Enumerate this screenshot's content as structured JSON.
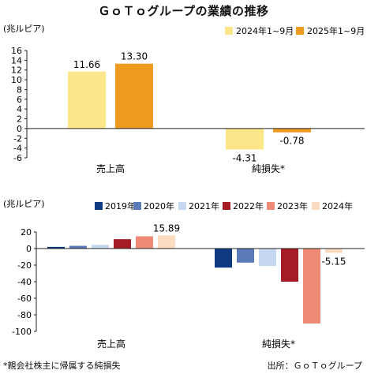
{
  "title": "ＧｏＴｏグループの業績の推移",
  "footnote": "*親会社株主に帰属する純損失",
  "source": "出所：ＧｏＴｏグループ",
  "chart_data": [
    {
      "type": "bar",
      "unit": "(兆ルピア)",
      "categories": [
        "売上高",
        "純損失*"
      ],
      "series": [
        {
          "name": "2024年1~9月",
          "color": "#fde68a",
          "values": [
            11.66,
            -4.31
          ]
        },
        {
          "name": "2025年1~9月",
          "color": "#ef9b20",
          "values": [
            13.3,
            -0.78
          ]
        }
      ],
      "data_labels": [
        [
          "11.66",
          "-4.31"
        ],
        [
          "13.30",
          "-0.78"
        ]
      ],
      "ylim": [
        -6,
        16
      ],
      "yticks": [
        16,
        14,
        12,
        10,
        8,
        6,
        4,
        2,
        0,
        -2,
        -4,
        -6
      ],
      "legend": "top-right"
    },
    {
      "type": "bar",
      "unit": "(兆ルピア)",
      "categories": [
        "売上高",
        "純損失*"
      ],
      "series": [
        {
          "name": "2019年",
          "color": "#0d3a80",
          "values": [
            2.0,
            -23
          ]
        },
        {
          "name": "2020年",
          "color": "#5a7bb8",
          "values": [
            3.3,
            -17
          ]
        },
        {
          "name": "2021年",
          "color": "#c5d8f0",
          "values": [
            4.5,
            -21
          ]
        },
        {
          "name": "2022年",
          "color": "#a51c24",
          "values": [
            11.3,
            -40
          ]
        },
        {
          "name": "2023年",
          "color": "#ef8a78",
          "values": [
            14.8,
            -90.5
          ]
        },
        {
          "name": "2024年",
          "color": "#fbdcc1",
          "values": [
            15.89,
            -5.15
          ]
        }
      ],
      "data_labels": [
        [
          "",
          ""
        ],
        [
          "",
          ""
        ],
        [
          "",
          ""
        ],
        [
          "",
          ""
        ],
        [
          "",
          ""
        ],
        [
          "15.89",
          "-5.15"
        ]
      ],
      "ylim": [
        -100,
        20
      ],
      "yticks": [
        20,
        0,
        -20,
        -40,
        -60,
        -80,
        -100
      ],
      "legend": "top-right"
    }
  ]
}
